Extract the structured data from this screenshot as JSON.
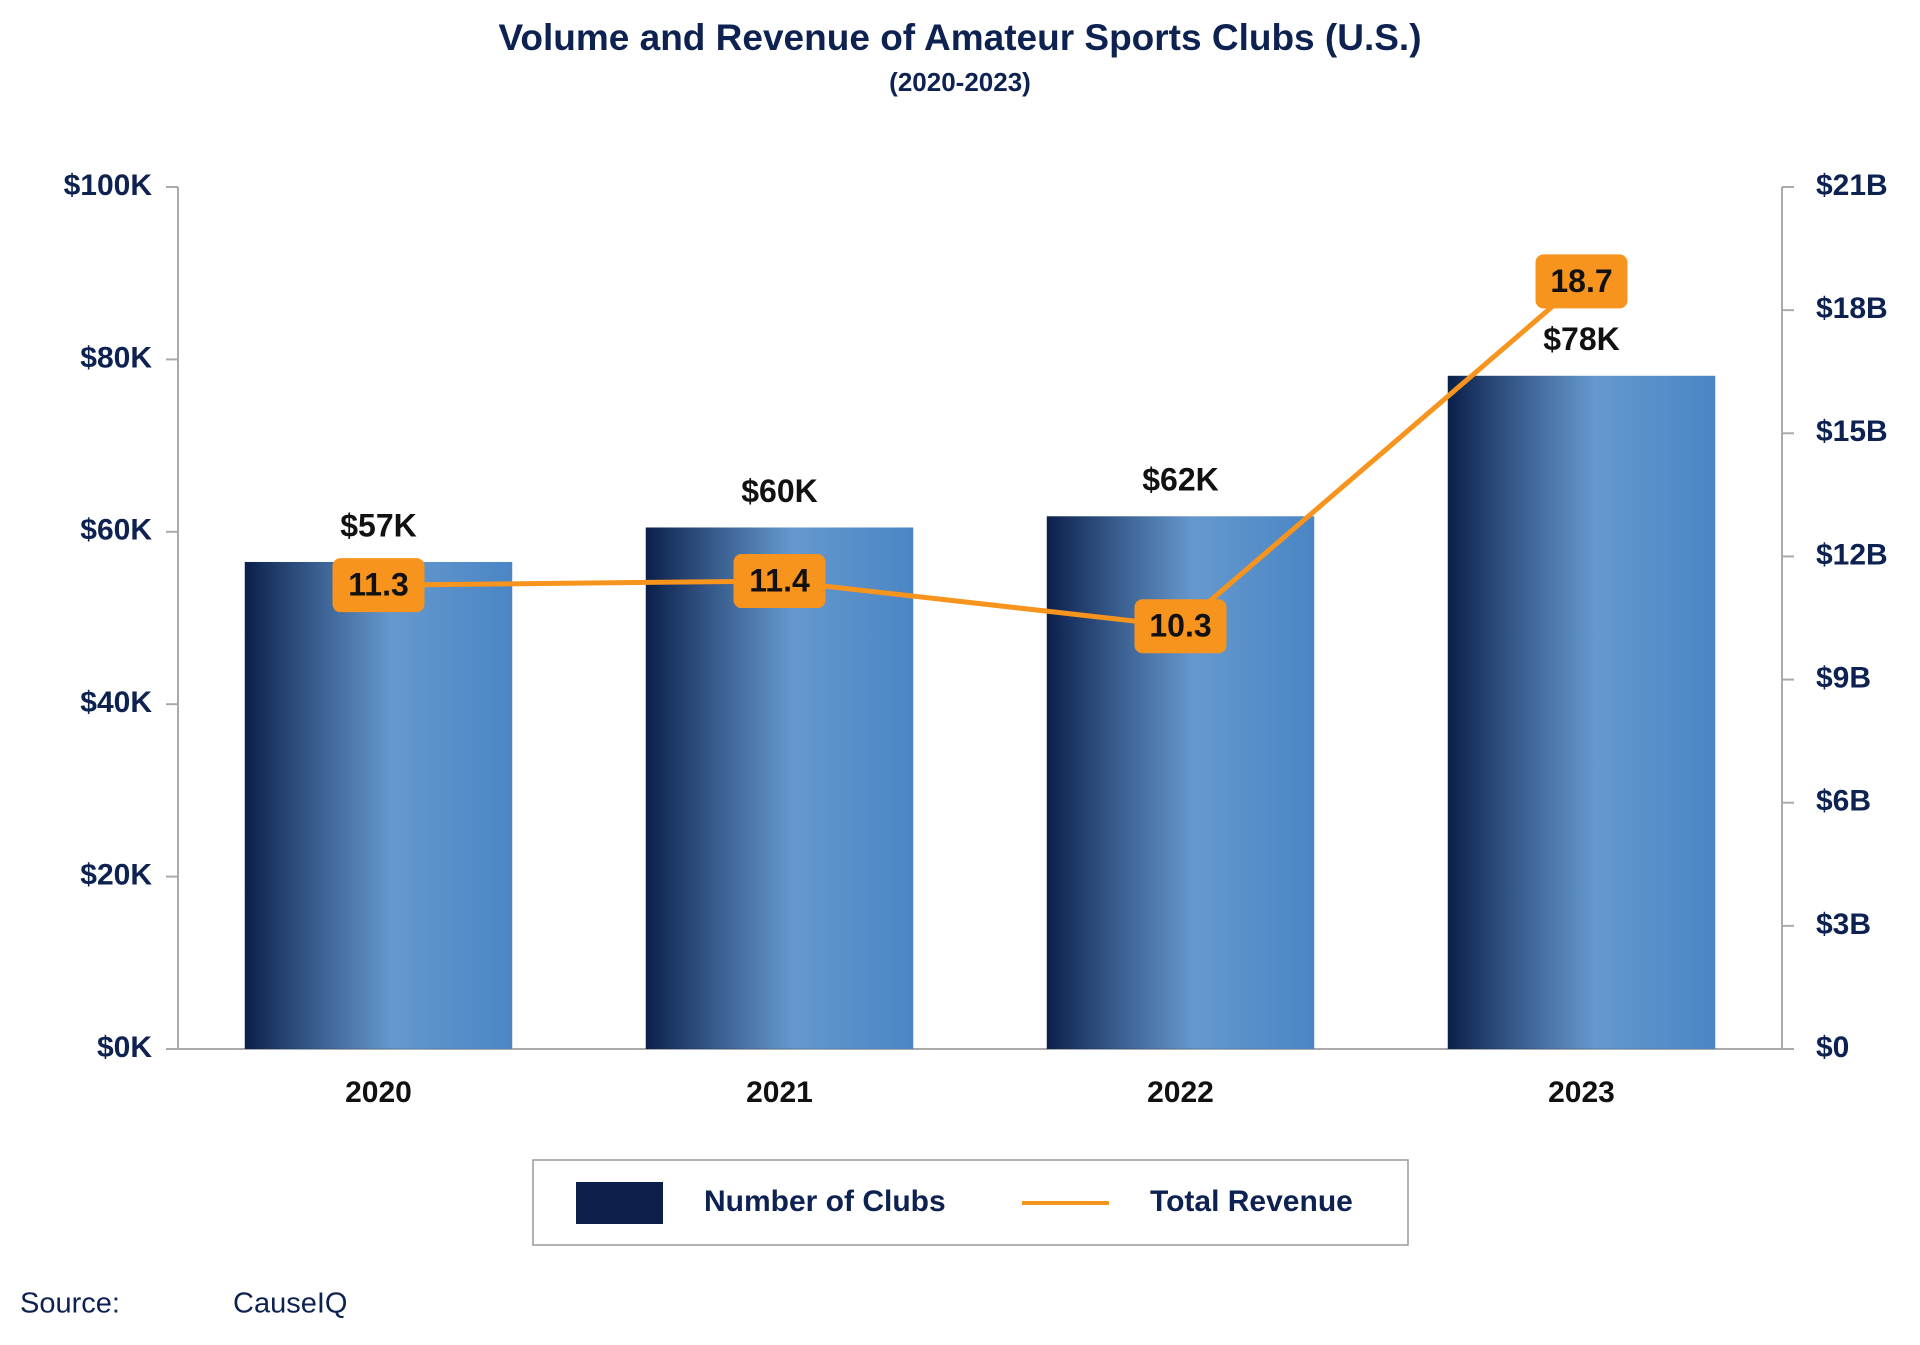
{
  "chart_data": {
    "type": "combo",
    "title": "Volume and Revenue of Amateur Sports Clubs (U.S.)",
    "subtitle": "(2020-2023)",
    "categories": [
      "2020",
      "2021",
      "2022",
      "2023"
    ],
    "series": [
      {
        "name": "Number of Clubs",
        "type": "bar",
        "color": "#0b1f4a",
        "color2": "#4a86c5",
        "values": [
          56500,
          60500,
          61800,
          78100
        ],
        "value_labels": [
          "$57K",
          "$60K",
          "$62K",
          "$78K"
        ]
      },
      {
        "name": "Total Revenue",
        "type": "line",
        "axis": "y2",
        "color": "#f7941d",
        "values": [
          11.3,
          11.4,
          10.3,
          18.7
        ]
      }
    ],
    "ylim": [
      0,
      100000
    ],
    "yticks": [
      {
        "value": 0,
        "label": "$0K"
      },
      {
        "value": 20000,
        "label": "$20K"
      },
      {
        "value": 40000,
        "label": "$40K"
      },
      {
        "value": 60000,
        "label": "$60K"
      },
      {
        "value": 80000,
        "label": "$80K"
      },
      {
        "value": 100000,
        "label": "$100K"
      }
    ],
    "y2lim": [
      0,
      21
    ],
    "y2ticks": [
      {
        "value": 0,
        "label": "$0"
      },
      {
        "value": 3,
        "label": "$3B"
      },
      {
        "value": 6,
        "label": "$6B"
      },
      {
        "value": 9,
        "label": "$9B"
      },
      {
        "value": 12,
        "label": "$12B"
      },
      {
        "value": 15,
        "label": "$15B"
      },
      {
        "value": 18,
        "label": "$18B"
      },
      {
        "value": 21,
        "label": "$21B"
      }
    ],
    "source_label": "Source:",
    "source": "CauseIQ"
  }
}
